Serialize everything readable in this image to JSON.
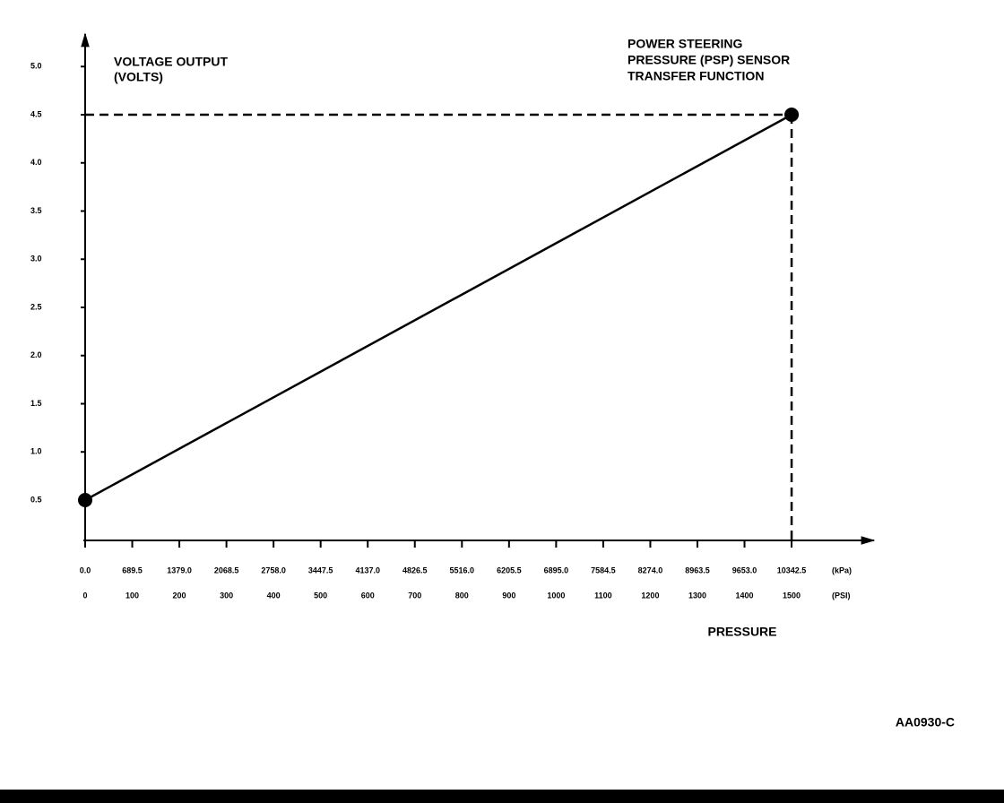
{
  "chart_data": {
    "type": "line",
    "title": [
      "POWER STEERING",
      "PRESSURE (PSP) SENSOR",
      "TRANSFER FUNCTION"
    ],
    "y_label": [
      "VOLTAGE OUTPUT",
      "(VOLTS)"
    ],
    "x_label": "PRESSURE",
    "x_unit": "(PSI)",
    "x2_unit": "(kPa)",
    "figure_id": "AA0930-C",
    "x": [
      0,
      1500
    ],
    "series": [
      {
        "color": "#000000",
        "values": [
          0.5,
          4.5
        ]
      }
    ],
    "markers": true,
    "point_guides": true,
    "xlim": [
      0,
      1675
    ],
    "xticks": [
      0,
      100,
      200,
      300,
      400,
      500,
      600,
      700,
      800,
      900,
      1000,
      1100,
      1200,
      1300,
      1400,
      1500
    ],
    "x2lim": [
      0,
      11549.1
    ],
    "x2ticks": [
      {
        "value": 0,
        "label": "0.0"
      },
      689.5,
      {
        "value": 1379,
        "label": "1379.0"
      },
      2068.5,
      {
        "value": 2758,
        "label": "2758.0"
      },
      3447.5,
      {
        "value": 4137,
        "label": "4137.0"
      },
      4826.5,
      {
        "value": 5516,
        "label": "5516.0"
      },
      6205.5,
      {
        "value": 6895,
        "label": "6895.0"
      },
      7584.5,
      {
        "value": 8274,
        "label": "8274.0"
      },
      8963.5,
      {
        "value": 9653,
        "label": "9653.0"
      },
      10342.5
    ],
    "ylim": [
      0.1,
      5.3
    ],
    "yticks": [
      0.5,
      {
        "value": 1,
        "label": "1.0"
      },
      1.5,
      {
        "value": 2,
        "label": "2.0"
      },
      2.5,
      {
        "value": 3,
        "label": "3.0"
      },
      3.5,
      {
        "value": 4,
        "label": "4.0"
      },
      4.5,
      {
        "value": 5,
        "label": "5.0"
      }
    ]
  }
}
